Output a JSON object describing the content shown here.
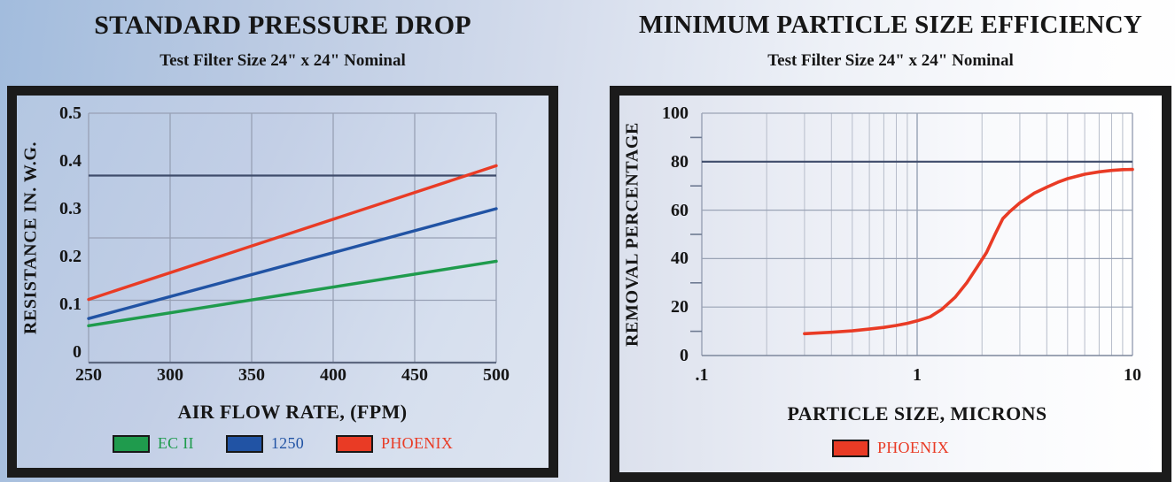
{
  "colors": {
    "dark_reference_line": "#3f4c6b",
    "grid_gray": "#97a0b4",
    "grid_gray_light": "#b7bdca",
    "axis_gray": "#5d6880",
    "frame_black": "#1b1b1b"
  },
  "chart_data": [
    {
      "type": "line",
      "title": "STANDARD PRESSURE DROP",
      "subtitle": "Test Filter Size 24\" x 24\" Nominal",
      "xlabel": "AIR FLOW RATE, (FPM)",
      "ylabel": "RESISTANCE IN. W.G.",
      "xlim": [
        250,
        500
      ],
      "ylim": [
        0,
        0.5
      ],
      "x_ticks": [
        "250",
        "300",
        "350",
        "400",
        "450",
        "500"
      ],
      "y_ticks": [
        "0.5",
        "0.4",
        "0.3",
        "0.2",
        "0.1",
        "0"
      ],
      "grid": true,
      "legend_position": "bottom",
      "x": [
        250,
        500
      ],
      "series": [
        {
          "name": "EC II",
          "color": "#1f9b4d",
          "values": [
            0.055,
            0.19
          ]
        },
        {
          "name": "1250",
          "color": "#2153a4",
          "values": [
            0.07,
            0.3
          ]
        },
        {
          "name": "PHOENIX",
          "color": "#e93b25",
          "values": [
            0.11,
            0.39
          ]
        }
      ]
    },
    {
      "type": "line",
      "title": "MINIMUM PARTICLE SIZE EFFICIENCY",
      "subtitle": "Test Filter Size 24\" x 24\" Nominal",
      "xlabel": "PARTICLE SIZE, MICRONS",
      "ylabel": "REMOVAL PERCENTAGE",
      "x_scale": "log",
      "xlim": [
        0.1,
        10
      ],
      "ylim": [
        0,
        100
      ],
      "x_ticks": [
        ".1",
        "1",
        "10"
      ],
      "y_ticks": [
        "100",
        "80",
        "60",
        "40",
        "20",
        "0"
      ],
      "y_minor_ticks": [
        90,
        70,
        50,
        30,
        10
      ],
      "grid": true,
      "legend_position": "bottom",
      "series": [
        {
          "name": "PHOENIX",
          "color": "#e93b25",
          "points": [
            [
              0.3,
              9
            ],
            [
              0.4,
              9.6
            ],
            [
              0.5,
              10.2
            ],
            [
              0.6,
              10.9
            ],
            [
              0.7,
              11.6
            ],
            [
              0.8,
              12.4
            ],
            [
              0.9,
              13.3
            ],
            [
              1.0,
              14.3
            ],
            [
              1.15,
              16
            ],
            [
              1.3,
              19
            ],
            [
              1.5,
              24
            ],
            [
              1.7,
              30
            ],
            [
              1.9,
              36.5
            ],
            [
              2.1,
              42.5
            ],
            [
              2.3,
              50
            ],
            [
              2.5,
              56.5
            ],
            [
              2.7,
              59.5
            ],
            [
              3.0,
              63
            ],
            [
              3.5,
              67
            ],
            [
              4.0,
              69.5
            ],
            [
              4.5,
              71.5
            ],
            [
              5.0,
              73
            ],
            [
              6.0,
              74.8
            ],
            [
              7.0,
              75.8
            ],
            [
              8.0,
              76.4
            ],
            [
              9.0,
              76.7
            ],
            [
              10,
              76.8
            ]
          ]
        }
      ]
    }
  ]
}
